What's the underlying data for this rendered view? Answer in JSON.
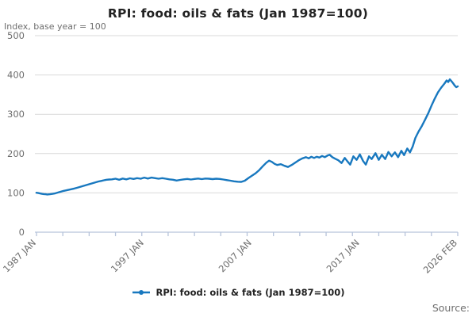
{
  "source": {
    "label": "Source:"
  },
  "colors": {
    "series": "#1878bf",
    "grid": "#d9d9d9",
    "axis": "#b6c3da",
    "text_muted": "#6e6e6e",
    "text_dark": "#222222"
  },
  "chart_data": {
    "type": "line",
    "title": "RPI: food: oils & fats (Jan 1987=100)",
    "subtitle": "Index, base year = 100",
    "xlabel": "",
    "ylabel": "Index, base year = 100",
    "legend_position": "bottom",
    "x_axis": {
      "range": [
        1987.0,
        2026.083
      ],
      "tick_labels": [
        "1987 JAN",
        "1997 JAN",
        "2007 JAN",
        "2017 JAN",
        "2026 FEB"
      ],
      "tick_label_positions": [
        1987.0,
        1997.0,
        2007.0,
        2017.0,
        2026.083
      ],
      "minor_tick_count": 17
    },
    "y_axis": {
      "range": [
        0,
        500
      ],
      "ticks": [
        0,
        100,
        200,
        300,
        400,
        500
      ],
      "gridlines": true
    },
    "series": [
      {
        "name": "RPI: food: oils & fats (Jan 1987=100)",
        "color": "#1878bf",
        "points": [
          [
            1987.0,
            100.5
          ],
          [
            1987.17,
            99.5
          ],
          [
            1987.33,
            98.5
          ],
          [
            1987.5,
            97.5
          ],
          [
            1987.67,
            97
          ],
          [
            1987.83,
            96.5
          ],
          [
            1988.0,
            96
          ],
          [
            1988.25,
            96.5
          ],
          [
            1988.5,
            97.5
          ],
          [
            1988.75,
            99
          ],
          [
            1989.0,
            101
          ],
          [
            1989.25,
            103
          ],
          [
            1989.5,
            105
          ],
          [
            1989.75,
            106.5
          ],
          [
            1990.0,
            108
          ],
          [
            1990.25,
            109.5
          ],
          [
            1990.5,
            111
          ],
          [
            1990.75,
            113
          ],
          [
            1991.0,
            115
          ],
          [
            1991.25,
            117
          ],
          [
            1991.5,
            119
          ],
          [
            1991.75,
            121
          ],
          [
            1992.0,
            123
          ],
          [
            1992.25,
            125
          ],
          [
            1992.5,
            127
          ],
          [
            1992.75,
            129
          ],
          [
            1993.0,
            130.5
          ],
          [
            1993.25,
            132
          ],
          [
            1993.5,
            133.5
          ],
          [
            1993.75,
            134
          ],
          [
            1994.0,
            134.5
          ],
          [
            1994.33,
            136
          ],
          [
            1994.67,
            133.5
          ],
          [
            1995.0,
            136.5
          ],
          [
            1995.33,
            134.5
          ],
          [
            1995.67,
            137
          ],
          [
            1996.0,
            135.5
          ],
          [
            1996.33,
            137.5
          ],
          [
            1996.67,
            136
          ],
          [
            1997.0,
            139
          ],
          [
            1997.33,
            136.5
          ],
          [
            1997.67,
            139
          ],
          [
            1998.0,
            137.5
          ],
          [
            1998.33,
            136
          ],
          [
            1998.67,
            137.5
          ],
          [
            1999.0,
            136
          ],
          [
            1999.33,
            134.5
          ],
          [
            1999.67,
            133.5
          ],
          [
            2000.0,
            131.5
          ],
          [
            2000.33,
            133
          ],
          [
            2000.67,
            134.5
          ],
          [
            2001.0,
            135.5
          ],
          [
            2001.33,
            134
          ],
          [
            2001.67,
            135.5
          ],
          [
            2002.0,
            136.5
          ],
          [
            2002.33,
            135
          ],
          [
            2002.67,
            136.5
          ],
          [
            2003.0,
            136
          ],
          [
            2003.33,
            135
          ],
          [
            2003.67,
            136
          ],
          [
            2004.0,
            135.5
          ],
          [
            2004.33,
            134
          ],
          [
            2004.67,
            132.5
          ],
          [
            2005.0,
            131
          ],
          [
            2005.33,
            129.5
          ],
          [
            2005.67,
            128.5
          ],
          [
            2006.0,
            128
          ],
          [
            2006.33,
            131
          ],
          [
            2006.67,
            138
          ],
          [
            2007.0,
            144
          ],
          [
            2007.33,
            150
          ],
          [
            2007.67,
            158
          ],
          [
            2008.0,
            168
          ],
          [
            2008.33,
            177
          ],
          [
            2008.58,
            182
          ],
          [
            2008.83,
            179
          ],
          [
            2009.08,
            174
          ],
          [
            2009.33,
            171
          ],
          [
            2009.67,
            173
          ],
          [
            2010.0,
            169
          ],
          [
            2010.33,
            166
          ],
          [
            2010.67,
            171
          ],
          [
            2011.0,
            177
          ],
          [
            2011.33,
            183
          ],
          [
            2011.67,
            188
          ],
          [
            2012.0,
            191
          ],
          [
            2012.25,
            188
          ],
          [
            2012.5,
            192
          ],
          [
            2012.75,
            189
          ],
          [
            2013.0,
            192
          ],
          [
            2013.25,
            190
          ],
          [
            2013.5,
            194
          ],
          [
            2013.75,
            191
          ],
          [
            2014.0,
            195
          ],
          [
            2014.2,
            197
          ],
          [
            2014.45,
            191
          ],
          [
            2014.7,
            187
          ],
          [
            2015.0,
            183
          ],
          [
            2015.3,
            176
          ],
          [
            2015.6,
            189
          ],
          [
            2015.85,
            180
          ],
          [
            2016.1,
            172
          ],
          [
            2016.4,
            193
          ],
          [
            2016.7,
            184
          ],
          [
            2017.0,
            198
          ],
          [
            2017.3,
            181
          ],
          [
            2017.55,
            172
          ],
          [
            2017.85,
            193
          ],
          [
            2018.1,
            186
          ],
          [
            2018.45,
            201
          ],
          [
            2018.75,
            184
          ],
          [
            2019.05,
            197
          ],
          [
            2019.35,
            186
          ],
          [
            2019.65,
            204
          ],
          [
            2019.95,
            193
          ],
          [
            2020.25,
            203
          ],
          [
            2020.55,
            191
          ],
          [
            2020.85,
            207
          ],
          [
            2021.1,
            196
          ],
          [
            2021.4,
            213
          ],
          [
            2021.65,
            203
          ],
          [
            2021.9,
            218
          ],
          [
            2022.15,
            240
          ],
          [
            2022.45,
            256
          ],
          [
            2022.75,
            270
          ],
          [
            2023.05,
            286
          ],
          [
            2023.35,
            303
          ],
          [
            2023.65,
            322
          ],
          [
            2023.95,
            340
          ],
          [
            2024.25,
            356
          ],
          [
            2024.55,
            368
          ],
          [
            2024.85,
            378
          ],
          [
            2025.05,
            386
          ],
          [
            2025.2,
            382
          ],
          [
            2025.35,
            389
          ],
          [
            2025.5,
            384
          ],
          [
            2025.65,
            379
          ],
          [
            2025.8,
            373
          ],
          [
            2025.95,
            369
          ],
          [
            2026.08,
            371
          ]
        ]
      }
    ]
  }
}
